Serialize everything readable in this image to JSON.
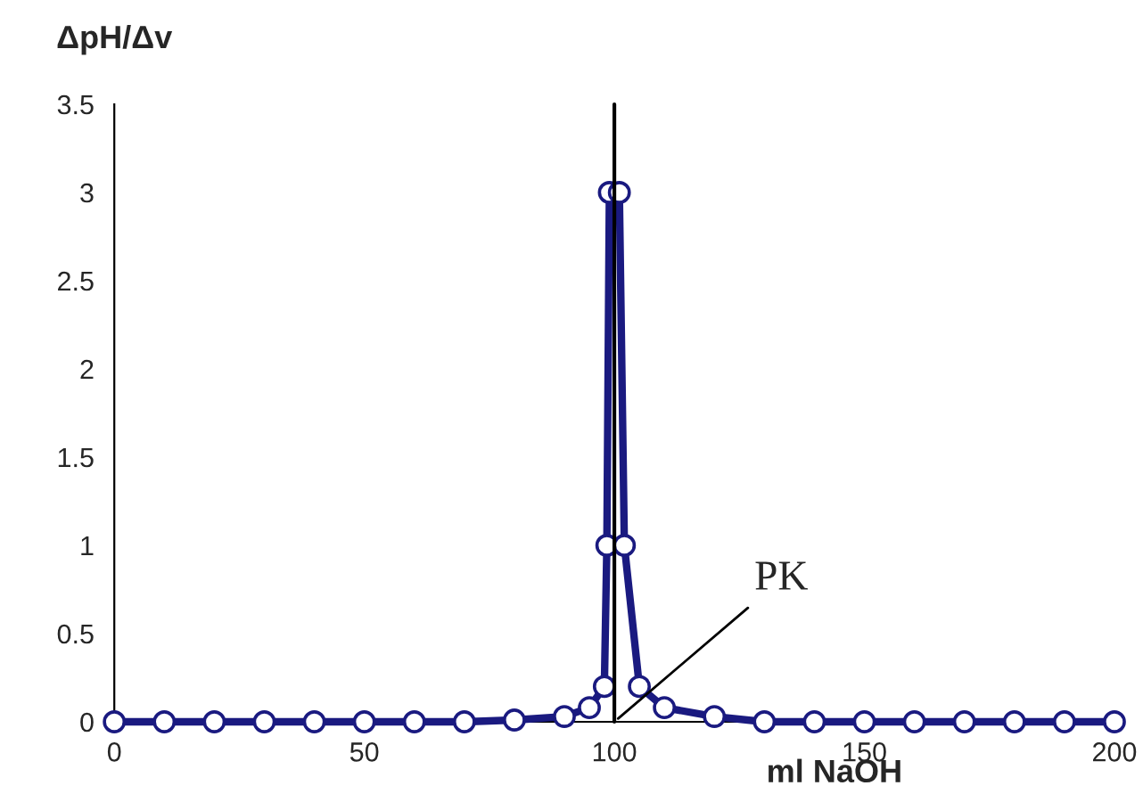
{
  "chart_data": {
    "type": "line",
    "xlabel": "ml NaOH",
    "ylabel": "ΔpH/Δv",
    "series": [
      {
        "color": "#1a1a80",
        "x": [
          0,
          10,
          20,
          30,
          40,
          50,
          60,
          70,
          80,
          90,
          95,
          98,
          98.5,
          99,
          101,
          102,
          105,
          110,
          120,
          130,
          140,
          150,
          160,
          170,
          180,
          190,
          200
        ],
        "values": [
          0,
          0,
          0,
          0,
          0,
          0,
          0,
          0,
          0.01,
          0.03,
          0.08,
          0.2,
          1,
          3,
          3,
          1,
          0.2,
          0.08,
          0.03,
          0,
          0,
          0,
          0,
          0,
          0,
          0,
          0
        ]
      }
    ],
    "xlim": [
      0,
      200
    ],
    "xticks": [
      0,
      50,
      100,
      150,
      200
    ],
    "ylim": [
      0,
      3.5
    ],
    "yticks": [
      0,
      0.5,
      1,
      1.5,
      2,
      2.5,
      3,
      3.5
    ],
    "ref_lines": [
      {
        "axis": "x",
        "value": 100,
        "color": "#000000"
      }
    ],
    "annotations": [
      {
        "text": "PK",
        "x": 100,
        "y": 0
      }
    ],
    "marker": "circle",
    "line_style": "solid",
    "grid": false,
    "legend": false
  }
}
